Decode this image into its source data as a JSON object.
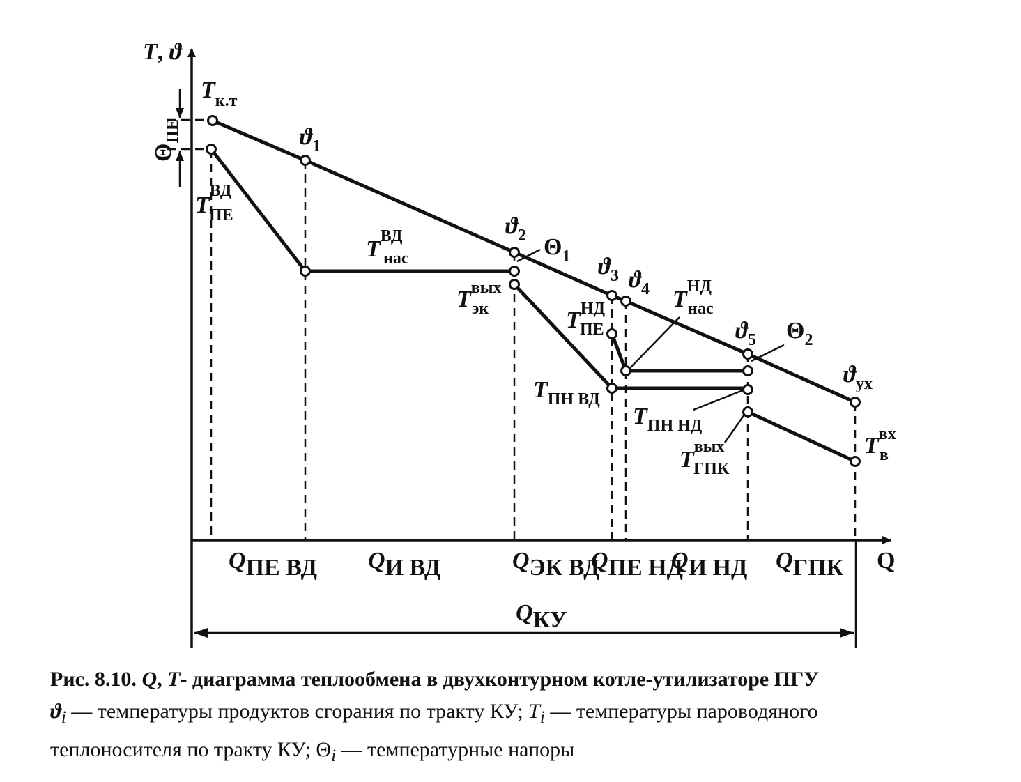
{
  "axes": {
    "y_label_T": "T",
    "y_label_sep": ", ",
    "y_label_theta": "ϑ",
    "x_label": "Q"
  },
  "points": {
    "T_kt": {
      "main": "T",
      "sub": "к.т"
    },
    "theta1": {
      "main": "ϑ",
      "sub": "1"
    },
    "T_pe_vd": {
      "main": "T",
      "sub": "ПЕ",
      "sup": "ВД"
    },
    "T_nas_vd": {
      "main": "T",
      "sub": "нас",
      "sup": "ВД"
    },
    "theta2": {
      "main": "ϑ",
      "sub": "2"
    },
    "Theta1": {
      "main": "Θ",
      "sub": "1"
    },
    "T_ek_out": {
      "main": "T",
      "sub": "эк",
      "sup": "вых"
    },
    "theta3": {
      "main": "ϑ",
      "sub": "3"
    },
    "theta4": {
      "main": "ϑ",
      "sub": "4"
    },
    "T_pe_nd": {
      "main": "T",
      "sub": "ПЕ",
      "sup": "НД"
    },
    "T_nas_nd": {
      "main": "T",
      "sub": "нас",
      "sup": "НД"
    },
    "T_pn_vd": {
      "main": "T",
      "sub": "ПН ВД"
    },
    "theta5": {
      "main": "ϑ",
      "sub": "5"
    },
    "Theta2": {
      "main": "Θ",
      "sub": "2"
    },
    "T_pn_nd": {
      "main": "T",
      "sub": "ПН НД"
    },
    "T_gpk_out": {
      "main": "T",
      "sub": "ГПК",
      "sup": "вых"
    },
    "theta_ux": {
      "main": "ϑ",
      "sub": "ух"
    },
    "T_v_in": {
      "main": "T",
      "sub": "в",
      "sup": "вх"
    },
    "Theta_pe": {
      "main": "Θ",
      "sub": "ПЕ"
    }
  },
  "sections": [
    {
      "main": "Q",
      "sub": "ПЕ ВД"
    },
    {
      "main": "Q",
      "sub": "И ВД"
    },
    {
      "main": "Q",
      "sub": "ЭК ВД"
    },
    {
      "main": "Q",
      "sub": "ПЕ НД"
    },
    {
      "main": "Q",
      "sub": "И НД"
    },
    {
      "main": "Q",
      "sub": "ГПК"
    }
  ],
  "total": {
    "main": "Q",
    "sub": "КУ"
  },
  "caption": {
    "title_bold": "Рис. 8.10. ",
    "title_q": "Q",
    "title_sep": ", ",
    "title_t": "T",
    "title_rest": "- диаграмма теплообмена в двухконтурном котле-утилизаторе ПГУ",
    "l2_sym": "ϑ",
    "l2_i": "i",
    "l2_text1": " — температуры продуктов сгорания по тракту КУ; ",
    "l2_sym2": "T",
    "l2_i2": "i",
    "l2_text2": " — температуры пароводяного",
    "l3_text1": "теплоносителя по тракту КУ; ",
    "l3_sym": "Θ",
    "l3_i": "i",
    "l3_text2": " — температурные напоры"
  }
}
